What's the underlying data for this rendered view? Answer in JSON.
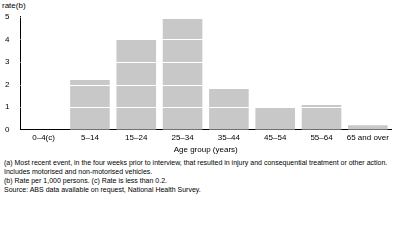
{
  "chart_data": {
    "type": "bar",
    "y_label": "rate(b)",
    "x_label": "Age group (years)",
    "categories": [
      "0–4(c)",
      "5–14",
      "15–24",
      "25–34",
      "35–44",
      "45–54",
      "55–64",
      "65 and over"
    ],
    "values": [
      0,
      2.2,
      4.0,
      4.9,
      1.8,
      1.0,
      1.1,
      0.2
    ],
    "color": "#c8c8c8",
    "ylim": [
      0,
      5
    ],
    "yticks": [
      0,
      1,
      2,
      3,
      4,
      5
    ],
    "grid": true,
    "notes": [
      "(a) Most recent event, in the four weeks prior to interview, that resulted in injury and consequential treatment or other action. Includes motorised and non-motorised vehicles.",
      "(b) Rate per 1,000 persons. (c) Rate is less than 0.2."
    ],
    "source": "Source: ABS data available on request, National Health Survey."
  }
}
